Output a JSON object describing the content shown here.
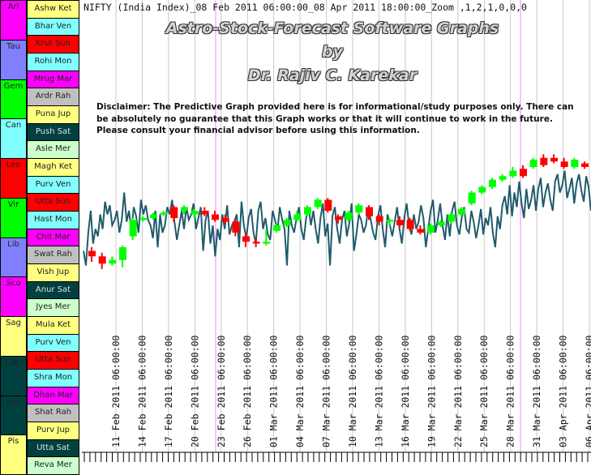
{
  "header": "NIFTY (India Index)_08 Feb 2011 06:00:00_08 Apr 2011 18:00:00_Zoom ,1,2,1,0,0,0",
  "title_line1": "Astro-Stock-Forecast Software Graphs",
  "title_line2": "by",
  "title_line3": "Dr. Rajiv C. Karekar",
  "disclaimer": "Disclaimer: The Predictive Graph provided here is for informational/study purposes only. There can be absolutely no guarantee that this Graph works or that it will continue to work in the future. Please consult your financial advisor before using this information.",
  "signs": [
    {
      "label": "Ari",
      "color": "#ff00ff"
    },
    {
      "label": "Tau",
      "color": "#8080ff"
    },
    {
      "label": "Gem",
      "color": "#00ff00"
    },
    {
      "label": "Can",
      "color": "#80ffff"
    },
    {
      "label": "Leo",
      "color": "#ff0000"
    },
    {
      "label": "Vir",
      "color": "#00ff00"
    },
    {
      "label": "Lib",
      "color": "#8080ff"
    },
    {
      "label": "Sco",
      "color": "#ff00ff"
    },
    {
      "label": "Sag",
      "color": "#ffff80"
    },
    {
      "label": "Cap",
      "color": "#004040"
    },
    {
      "label": "Aqu",
      "color": "#004040"
    },
    {
      "label": "Pis",
      "color": "#ffff80"
    }
  ],
  "nakshatras": [
    {
      "label": "Ashw Ket",
      "color": "#ffff80"
    },
    {
      "label": "Bhar Ven",
      "color": "#80ffff"
    },
    {
      "label": "Krut Sun",
      "color": "#ff0000"
    },
    {
      "label": "Rohi Mon",
      "color": "#80ffff"
    },
    {
      "label": "Mrug Mar",
      "color": "#ff00ff"
    },
    {
      "label": "Ardr Rah",
      "color": "#c0c0c0"
    },
    {
      "label": "Puna Jup",
      "color": "#ffff80"
    },
    {
      "label": "Push Sat",
      "color": "#004040"
    },
    {
      "label": "Asle Mer",
      "color": "#ccffcc"
    },
    {
      "label": "Magh Ket",
      "color": "#ffff80"
    },
    {
      "label": "Purv Ven",
      "color": "#80ffff"
    },
    {
      "label": "Utta Sun",
      "color": "#ff0000"
    },
    {
      "label": "Hast Mon",
      "color": "#80ffff"
    },
    {
      "label": "Chit Mar",
      "color": "#ff00ff"
    },
    {
      "label": "Swat Rah",
      "color": "#c0c0c0"
    },
    {
      "label": "Vish Jup",
      "color": "#ffff80"
    },
    {
      "label": "Anur Sat",
      "color": "#004040"
    },
    {
      "label": "Jyes Mer",
      "color": "#ccffcc"
    },
    {
      "label": "Mula Ket",
      "color": "#ffff80"
    },
    {
      "label": "Purv Ven",
      "color": "#80ffff"
    },
    {
      "label": "Utta Sun",
      "color": "#ff0000"
    },
    {
      "label": "Shra Mon",
      "color": "#80ffff"
    },
    {
      "label": "Dhan Mar",
      "color": "#ff00ff"
    },
    {
      "label": "Shat Rah",
      "color": "#c0c0c0"
    },
    {
      "label": "Purv Jup",
      "color": "#ffff80"
    },
    {
      "label": "Utta Sat",
      "color": "#004040"
    },
    {
      "label": "Reva Mer",
      "color": "#ccffcc"
    }
  ],
  "chart_data": {
    "type": "line",
    "x_tick_labels": [
      "11 Feb 2011 06:00:00",
      "14 Feb 2011 06:00:00",
      "17 Feb 2011 06:00:00",
      "20 Feb 2011 06:00:00",
      "23 Feb 2011 06:00:00",
      "26 Feb 2011 06:00:00",
      "01 Mar 2011 06:00:00",
      "04 Mar 2011 06:00:00",
      "07 Mar 2011 06:00:00",
      "10 Mar 2011 06:00:00",
      "13 Mar 2011 06:00:00",
      "16 Mar 2011 06:00:00",
      "19 Mar 2011 06:00:00",
      "22 Mar 2011 06:00:00",
      "25 Mar 2011 06:00:00",
      "28 Mar 2011 06:00:00",
      "31 Mar 2011 06:00:00",
      "03 Apr 2011 06:00:00",
      "06 Apr 2011 06:00:00"
    ],
    "x_range": [
      "08 Feb 2011 06:00:00",
      "08 Apr 2011 18:00:00"
    ],
    "y_range": [
      0,
      100
    ],
    "grid": true,
    "vertical_markers": [
      "23 Feb 2011",
      "30 Mar 2011"
    ],
    "predictive_line": [
      38,
      30,
      48,
      60,
      42,
      50,
      46,
      58,
      50,
      65,
      58,
      63,
      52,
      55,
      60,
      48,
      55,
      70,
      54,
      60,
      49,
      62,
      57,
      48,
      66,
      58,
      63,
      55,
      52,
      45,
      60,
      40,
      58,
      48,
      52,
      62,
      58,
      66,
      54,
      44,
      52,
      60,
      50,
      62,
      55,
      58,
      64,
      50,
      56,
      62,
      38,
      55,
      60,
      42,
      52,
      35,
      50,
      44,
      58,
      50,
      63,
      47,
      52,
      54,
      58,
      40,
      65,
      52,
      45,
      56,
      61,
      48,
      42,
      60,
      65,
      50,
      56,
      47,
      44,
      60,
      55,
      49,
      62,
      55,
      50,
      30,
      60,
      52,
      48,
      56,
      62,
      50,
      44,
      56,
      62,
      52,
      60,
      50,
      42,
      56,
      64,
      46,
      53,
      30,
      57,
      62,
      50,
      42,
      55,
      60,
      46,
      53,
      64,
      38,
      47,
      58,
      55,
      48,
      52,
      62,
      55,
      48,
      44,
      57,
      63,
      50,
      40,
      58,
      52,
      46,
      54,
      62,
      50,
      42,
      56,
      64,
      52,
      47,
      58,
      50,
      54,
      63,
      56,
      40,
      50,
      60,
      66,
      48,
      55,
      64,
      52,
      44,
      58,
      46,
      60,
      65,
      52,
      47,
      56,
      62,
      50,
      48,
      60,
      54,
      45,
      52,
      61,
      47,
      56,
      52,
      62,
      48,
      40,
      57,
      50,
      63,
      68,
      58,
      74,
      57,
      70,
      62,
      76,
      64,
      56,
      72,
      61,
      66,
      74,
      60,
      72,
      78,
      62,
      70,
      75,
      66,
      60,
      76,
      80,
      70,
      74,
      82,
      67,
      72,
      78,
      64,
      75,
      80,
      71,
      65,
      79,
      73,
      60
    ],
    "candles": [
      {
        "open": 38,
        "close": 35,
        "high": 40,
        "low": 32
      },
      {
        "open": 35,
        "close": 31,
        "high": 37,
        "low": 28
      },
      {
        "open": 31,
        "close": 33,
        "high": 35,
        "low": 30
      },
      {
        "open": 33,
        "close": 40,
        "high": 41,
        "low": 29
      },
      {
        "open": 46,
        "close": 55,
        "high": 56,
        "low": 44
      },
      {
        "open": 55,
        "close": 56,
        "high": 57,
        "low": 54
      },
      {
        "open": 56,
        "close": 58,
        "high": 59,
        "low": 55
      },
      {
        "open": 58,
        "close": 59,
        "high": 60,
        "low": 57
      },
      {
        "open": 62,
        "close": 56,
        "high": 63,
        "low": 54
      },
      {
        "open": 60,
        "close": 62,
        "high": 63,
        "low": 58
      },
      {
        "open": 58,
        "close": 60,
        "high": 61,
        "low": 56
      },
      {
        "open": 60,
        "close": 58,
        "high": 62,
        "low": 57
      },
      {
        "open": 58,
        "close": 55,
        "high": 60,
        "low": 54
      },
      {
        "open": 56,
        "close": 54,
        "high": 58,
        "low": 53
      },
      {
        "open": 54,
        "close": 48,
        "high": 55,
        "low": 46
      },
      {
        "open": 46,
        "close": 43,
        "high": 48,
        "low": 40
      },
      {
        "open": 43,
        "close": 42,
        "high": 45,
        "low": 40
      },
      {
        "open": 42,
        "close": 43,
        "high": 50,
        "low": 41
      },
      {
        "open": 49,
        "close": 52,
        "high": 53,
        "low": 48
      },
      {
        "open": 52,
        "close": 55,
        "high": 56,
        "low": 51
      },
      {
        "open": 55,
        "close": 58,
        "high": 60,
        "low": 54
      },
      {
        "open": 58,
        "close": 62,
        "high": 63,
        "low": 57
      },
      {
        "open": 62,
        "close": 66,
        "high": 67,
        "low": 61
      },
      {
        "open": 66,
        "close": 60,
        "high": 67,
        "low": 59
      },
      {
        "open": 57,
        "close": 55,
        "high": 58,
        "low": 53
      },
      {
        "open": 55,
        "close": 59,
        "high": 60,
        "low": 54
      },
      {
        "open": 59,
        "close": 63,
        "high": 64,
        "low": 58
      },
      {
        "open": 62,
        "close": 57,
        "high": 63,
        "low": 55
      },
      {
        "open": 57,
        "close": 54,
        "high": 58,
        "low": 52
      },
      {
        "open": 54,
        "close": 55,
        "high": 56,
        "low": 52
      },
      {
        "open": 55,
        "close": 52,
        "high": 57,
        "low": 51
      },
      {
        "open": 55,
        "close": 50,
        "high": 56,
        "low": 49
      },
      {
        "open": 50,
        "close": 48,
        "high": 52,
        "low": 47
      },
      {
        "open": 48,
        "close": 52,
        "high": 53,
        "low": 47
      },
      {
        "open": 52,
        "close": 54,
        "high": 55,
        "low": 51
      },
      {
        "open": 54,
        "close": 58,
        "high": 59,
        "low": 53
      },
      {
        "open": 58,
        "close": 61,
        "high": 62,
        "low": 57
      },
      {
        "open": 64,
        "close": 70,
        "high": 71,
        "low": 63
      },
      {
        "open": 70,
        "close": 73,
        "high": 74,
        "low": 69
      },
      {
        "open": 73,
        "close": 77,
        "high": 78,
        "low": 72
      },
      {
        "open": 77,
        "close": 79,
        "high": 80,
        "low": 76
      },
      {
        "open": 79,
        "close": 82,
        "high": 84,
        "low": 78
      },
      {
        "open": 83,
        "close": 79,
        "high": 85,
        "low": 78
      },
      {
        "open": 84,
        "close": 88,
        "high": 89,
        "low": 83
      },
      {
        "open": 89,
        "close": 85,
        "high": 91,
        "low": 84
      },
      {
        "open": 89,
        "close": 87,
        "high": 91,
        "low": 86
      },
      {
        "open": 87,
        "close": 84,
        "high": 89,
        "low": 83
      },
      {
        "open": 84,
        "close": 88,
        "high": 89,
        "low": 83
      },
      {
        "open": 86,
        "close": 84,
        "high": 87,
        "low": 83
      }
    ]
  },
  "colors": {
    "line": "#1f5b6b",
    "bull": "#00ff00",
    "bear": "#ff0000",
    "grid": "#c8c8c8",
    "marker": "#ff80ff"
  }
}
